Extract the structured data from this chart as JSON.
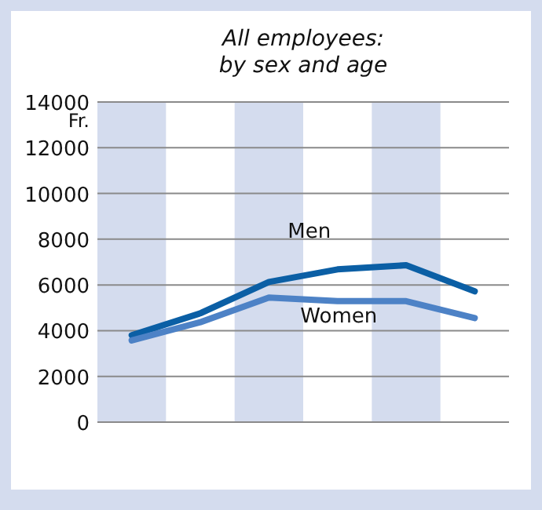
{
  "chart_data": {
    "type": "line",
    "title": "All employees:\nby sex and age",
    "ylabel": "Fr.",
    "categories": [
      null,
      null,
      null,
      null,
      null,
      null
    ],
    "series": [
      {
        "name": "Men",
        "color": "#0b5fa5",
        "values": [
          3800,
          4760,
          6130,
          6680,
          6860,
          5720
        ]
      },
      {
        "name": "Women",
        "color": "#4d82c6",
        "values": [
          3570,
          4370,
          5450,
          5290,
          5290,
          4550
        ]
      }
    ],
    "ylim": [
      0,
      14000
    ],
    "yticks": [
      0,
      2000,
      4000,
      6000,
      8000,
      10000,
      12000,
      14000
    ],
    "grid": "y",
    "marker": "none",
    "line_style": "solid",
    "legend": false
  }
}
